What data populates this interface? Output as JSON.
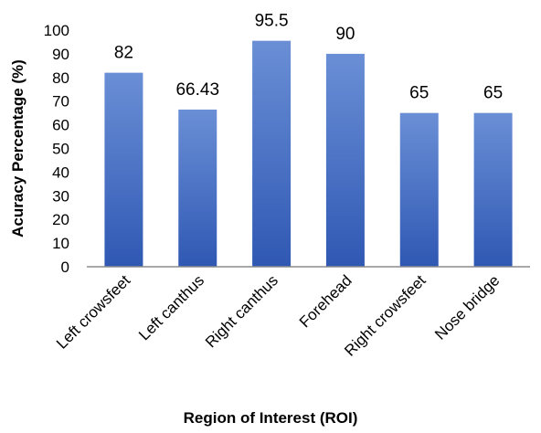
{
  "chart_data": {
    "type": "bar",
    "categories": [
      "Left crowsfeet",
      "Left canthus",
      "Right canthus",
      "Forehead",
      "Right crowsfeet",
      "Nose bridge"
    ],
    "values": [
      82,
      66.43,
      95.5,
      90,
      65,
      65
    ],
    "data_labels": [
      "82",
      "66.43",
      "95.5",
      "90",
      "65",
      "65"
    ],
    "xlabel": "Region of Interest (ROI)",
    "ylabel": "Acuracy Percentage (%)",
    "ylim": [
      0,
      100
    ],
    "yticks": [
      "0",
      "10",
      "20",
      "30",
      "40",
      "50",
      "60",
      "70",
      "80",
      "90",
      "100"
    ],
    "ytick_values": [
      0,
      10,
      20,
      30,
      40,
      50,
      60,
      70,
      80,
      90,
      100
    ],
    "grid": false,
    "legend": "none",
    "colors": {
      "bar_top": "#6a8fd6",
      "bar_bottom": "#2f58b3",
      "axis": "#8c8c8c"
    }
  }
}
